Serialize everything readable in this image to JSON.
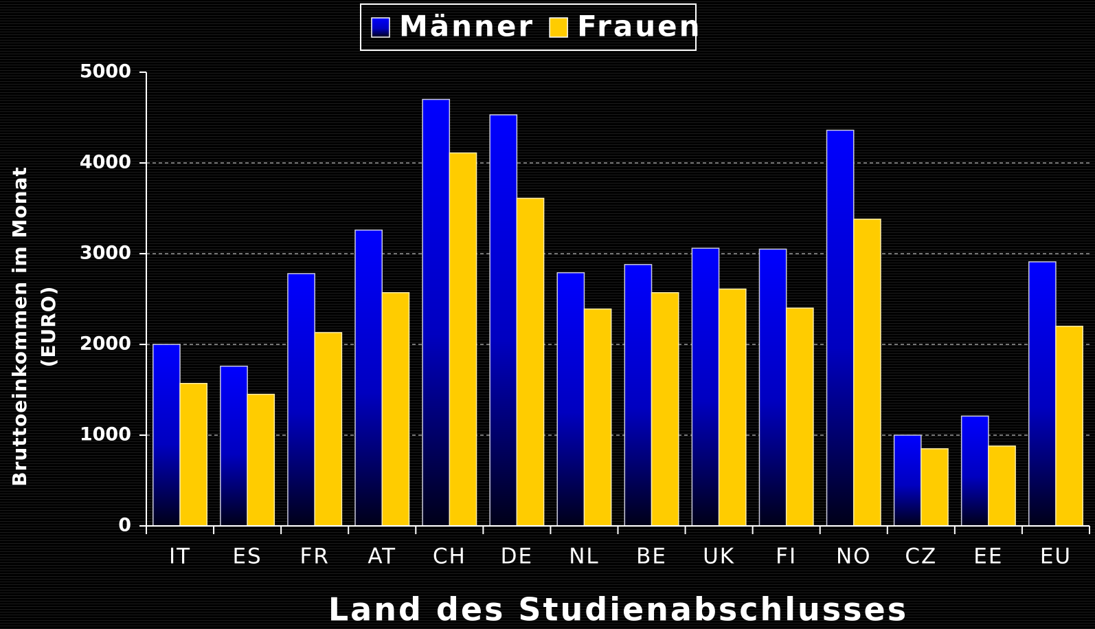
{
  "chart_data": {
    "type": "bar",
    "x_label": "Land des Studienabschlusses",
    "y_label": [
      "Bruttoeinkommen im Monat",
      "(EURO)"
    ],
    "categories": [
      "IT",
      "ES",
      "FR",
      "AT",
      "CH",
      "DE",
      "NL",
      "BE",
      "UK",
      "FI",
      "NO",
      "CZ",
      "EE",
      "EU"
    ],
    "series": [
      {
        "name": "Männer",
        "color": "#0000ff",
        "values": [
          2000,
          1760,
          2780,
          3260,
          4700,
          4530,
          2790,
          2880,
          3060,
          3050,
          4360,
          1000,
          1210,
          2910
        ]
      },
      {
        "name": "Frauen",
        "color": "#ffcc00",
        "values": [
          1570,
          1450,
          2130,
          2570,
          4110,
          3610,
          2390,
          2570,
          2610,
          2400,
          3380,
          850,
          880,
          2200
        ]
      }
    ],
    "ylim": [
      0,
      5000
    ],
    "yticks": [
      0,
      1000,
      2000,
      3000,
      4000,
      5000
    ],
    "grid": true,
    "legend": "top"
  }
}
